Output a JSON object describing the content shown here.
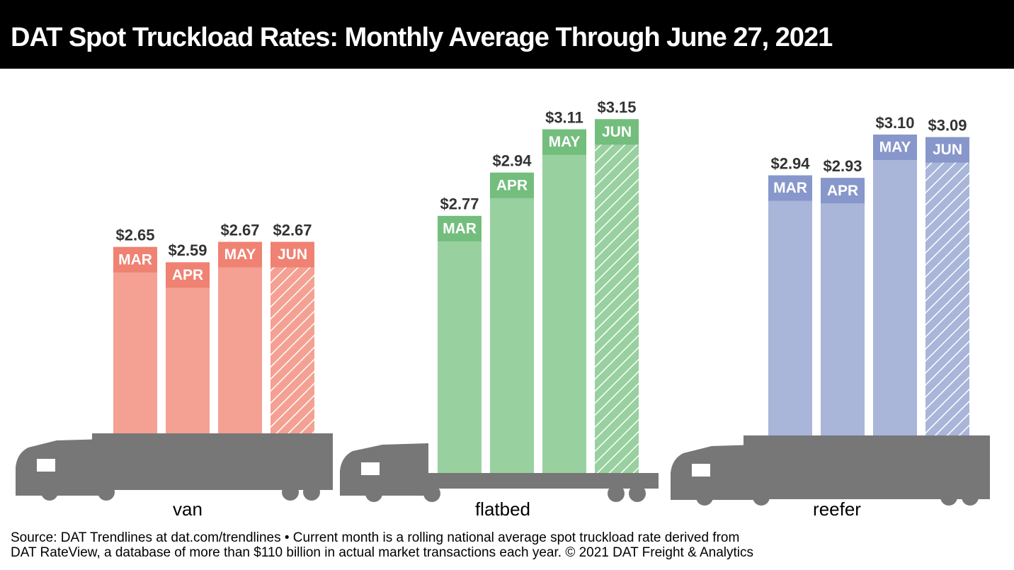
{
  "title": "DAT Spot Truckload Rates: Monthly Average Through June 27, 2021",
  "source": [
    "Source: DAT Trendlines at dat.com/trendlines • Current month is a rolling national average spot truckload rate derived from",
    "DAT RateView, a database of more than $110 billion in actual market transactions each year. © 2021 DAT Freight & Analytics"
  ],
  "chart_data": [
    {
      "type": "bar",
      "x_label": "van",
      "categories": [
        "MAR",
        "APR",
        "MAY",
        "JUN"
      ],
      "values": [
        2.65,
        2.59,
        2.67,
        2.67
      ],
      "value_labels": [
        "$2.65",
        "$2.59",
        "$2.67",
        "$2.67"
      ],
      "color": "#f4a193",
      "label_color": "#ef8272",
      "ylim": [
        1.92,
        3.34
      ]
    },
    {
      "type": "bar",
      "x_label": "flatbed",
      "categories": [
        "MAR",
        "APR",
        "MAY",
        "JUN"
      ],
      "values": [
        2.77,
        2.94,
        3.11,
        3.15
      ],
      "value_labels": [
        "$2.77",
        "$2.94",
        "$3.11",
        "$3.15"
      ],
      "color": "#99d0a0",
      "label_color": "#73be7d",
      "ylim": [
        1.76,
        3.34
      ]
    },
    {
      "type": "bar",
      "x_label": "reefer",
      "categories": [
        "MAR",
        "APR",
        "MAY",
        "JUN"
      ],
      "values": [
        2.94,
        2.93,
        3.1,
        3.09
      ],
      "value_labels": [
        "$2.94",
        "$2.93",
        "$3.10",
        "$3.09"
      ],
      "color": "#a9b6da",
      "label_color": "#8797cb",
      "ylim": [
        1.92,
        3.35
      ]
    }
  ]
}
